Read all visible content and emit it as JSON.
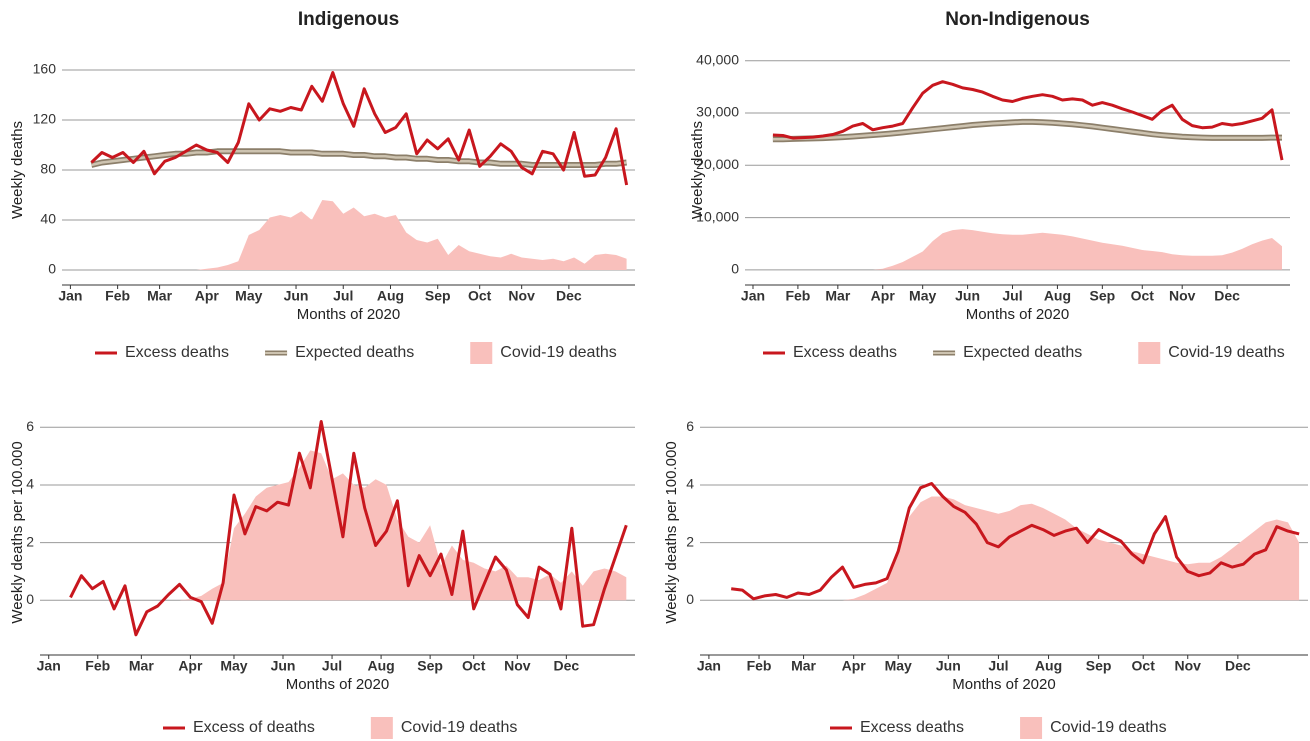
{
  "chart_data": [
    {
      "type": "line",
      "title": "Indigenous",
      "xlabel": "Months of 2020",
      "ylabel": "Weekly deaths",
      "xlim": [
        -0.8,
        53.8
      ],
      "xticks": [
        {
          "value": 0,
          "label": "Jan"
        },
        {
          "value": 4.5,
          "label": "Feb"
        },
        {
          "value": 8.5,
          "label": "Mar"
        },
        {
          "value": 13,
          "label": "Apr"
        },
        {
          "value": 17,
          "label": "May"
        },
        {
          "value": 21.5,
          "label": "Jun"
        },
        {
          "value": 26,
          "label": "Jul"
        },
        {
          "value": 30.5,
          "label": "Aug"
        },
        {
          "value": 35,
          "label": "Sep"
        },
        {
          "value": 39,
          "label": "Oct"
        },
        {
          "value": 43,
          "label": "Nov"
        },
        {
          "value": 47.5,
          "label": "Dec"
        }
      ],
      "ylim": [
        -12,
        172
      ],
      "yticks": [
        0,
        40,
        80,
        120,
        160
      ],
      "grid": true,
      "x": [
        2,
        3,
        4,
        5,
        6,
        7,
        8,
        9,
        10,
        11,
        12,
        13,
        14,
        15,
        16,
        17,
        18,
        19,
        20,
        21,
        22,
        23,
        24,
        25,
        26,
        27,
        28,
        29,
        30,
        31,
        32,
        33,
        34,
        35,
        36,
        37,
        38,
        39,
        40,
        41,
        42,
        43,
        44,
        45,
        46,
        47,
        48,
        49,
        50,
        51,
        52,
        53
      ],
      "series": [
        {
          "name": "Excess deaths",
          "type": "line",
          "color": "#c8171e",
          "values": [
            86,
            94,
            90,
            94,
            86,
            95,
            77,
            87,
            90,
            95,
            100,
            96,
            94,
            86,
            102,
            133,
            120,
            129,
            127,
            130,
            128,
            147,
            135,
            158,
            133,
            115,
            145,
            125,
            110,
            114,
            125,
            93,
            104,
            97,
            105,
            88,
            112,
            83,
            91,
            101,
            95,
            82,
            77,
            95,
            93,
            80,
            110,
            75,
            76,
            90,
            113,
            68
          ]
        },
        {
          "name": "Expected deaths",
          "type": "band",
          "color": "#8c7f6a",
          "values": [
            84,
            86,
            87,
            88,
            89,
            90,
            91,
            92,
            93,
            93,
            94,
            94,
            95,
            95,
            95,
            95,
            95,
            95,
            95,
            94,
            94,
            94,
            93,
            93,
            93,
            92,
            92,
            91,
            91,
            90,
            90,
            89,
            89,
            88,
            88,
            87,
            87,
            86,
            86,
            85,
            85,
            85,
            84,
            84,
            84,
            84,
            84,
            84,
            84,
            85,
            85,
            86
          ]
        },
        {
          "name": "Covid-19 deaths",
          "type": "area",
          "color": "#f9c0bc",
          "values": [
            0,
            0,
            0,
            0,
            0,
            0,
            0,
            0,
            0,
            0,
            0,
            1,
            2,
            4,
            7,
            28,
            32,
            42,
            44,
            42,
            47,
            40,
            56,
            55,
            45,
            50,
            43,
            45,
            42,
            44,
            30,
            24,
            22,
            25,
            12,
            20,
            15,
            13,
            11,
            10,
            13,
            10,
            9,
            8,
            9,
            7,
            10,
            5,
            12,
            13,
            12,
            9
          ]
        }
      ]
    },
    {
      "type": "line",
      "title": "Non-Indigenous",
      "xlabel": "Months of 2020",
      "ylabel": "Weekly deaths",
      "xlim": [
        -0.8,
        53.8
      ],
      "xticks": [
        {
          "value": 0,
          "label": "Jan"
        },
        {
          "value": 4.5,
          "label": "Feb"
        },
        {
          "value": 8.5,
          "label": "Mar"
        },
        {
          "value": 13,
          "label": "Apr"
        },
        {
          "value": 17,
          "label": "May"
        },
        {
          "value": 21.5,
          "label": "Jun"
        },
        {
          "value": 26,
          "label": "Jul"
        },
        {
          "value": 30.5,
          "label": "Aug"
        },
        {
          "value": 35,
          "label": "Sep"
        },
        {
          "value": 39,
          "label": "Oct"
        },
        {
          "value": 43,
          "label": "Nov"
        },
        {
          "value": 47.5,
          "label": "Dec"
        }
      ],
      "ylim": [
        -2900,
        41100
      ],
      "yticks": [
        0,
        {
          "value": 10000,
          "label": "10,000"
        },
        {
          "value": 20000,
          "label": "20,000"
        },
        {
          "value": 30000,
          "label": "30,000"
        },
        {
          "value": 40000,
          "label": "40,000"
        }
      ],
      "grid": true,
      "x": [
        2,
        3,
        4,
        5,
        6,
        7,
        8,
        9,
        10,
        11,
        12,
        13,
        14,
        15,
        16,
        17,
        18,
        19,
        20,
        21,
        22,
        23,
        24,
        25,
        26,
        27,
        28,
        29,
        30,
        31,
        32,
        33,
        34,
        35,
        36,
        37,
        38,
        39,
        40,
        41,
        42,
        43,
        44,
        45,
        46,
        47,
        48,
        49,
        50,
        51,
        52,
        53
      ],
      "series": [
        {
          "name": "Excess deaths",
          "type": "line",
          "color": "#c8171e",
          "values": [
            25800,
            25700,
            25200,
            25300,
            25400,
            25600,
            25900,
            26500,
            27500,
            28000,
            26800,
            27200,
            27500,
            28000,
            31000,
            33800,
            35300,
            36000,
            35500,
            34800,
            34500,
            34000,
            33200,
            32500,
            32200,
            32800,
            33200,
            33500,
            33200,
            32500,
            32700,
            32500,
            31500,
            32000,
            31500,
            30800,
            30200,
            29500,
            28800,
            30500,
            31500,
            28800,
            27600,
            27200,
            27300,
            28000,
            27700,
            28000,
            28500,
            29000,
            30600,
            21000
          ]
        },
        {
          "name": "Expected deaths",
          "type": "band",
          "color": "#8c7f6a",
          "values": [
            25000,
            25000,
            25050,
            25100,
            25150,
            25200,
            25300,
            25400,
            25500,
            25650,
            25800,
            25950,
            26100,
            26300,
            26500,
            26700,
            26900,
            27100,
            27300,
            27500,
            27700,
            27850,
            28000,
            28100,
            28200,
            28300,
            28300,
            28250,
            28150,
            28000,
            27850,
            27650,
            27450,
            27200,
            26950,
            26700,
            26450,
            26200,
            25950,
            25750,
            25600,
            25450,
            25350,
            25300,
            25250,
            25250,
            25250,
            25250,
            25250,
            25250,
            25300,
            25300
          ]
        },
        {
          "name": "Covid-19 deaths",
          "type": "area",
          "color": "#f9c0bc",
          "values": [
            0,
            0,
            0,
            0,
            0,
            0,
            0,
            0,
            0,
            0,
            0,
            200,
            800,
            1500,
            2500,
            3500,
            5500,
            7000,
            7600,
            7800,
            7600,
            7300,
            7000,
            6800,
            6700,
            6700,
            6900,
            7100,
            6900,
            6700,
            6400,
            6000,
            5600,
            5200,
            4900,
            4600,
            4200,
            3800,
            3600,
            3400,
            3000,
            2800,
            2700,
            2700,
            2700,
            2800,
            3300,
            4000,
            4900,
            5600,
            6100,
            4500
          ]
        }
      ]
    },
    {
      "type": "line",
      "xlabel": "Months of 2020",
      "ylabel": "Weekly deaths per 100.000",
      "xlim": [
        -0.8,
        53.8
      ],
      "xticks": [
        {
          "value": 0,
          "label": "Jan"
        },
        {
          "value": 4.5,
          "label": "Feb"
        },
        {
          "value": 8.5,
          "label": "Mar"
        },
        {
          "value": 13,
          "label": "Apr"
        },
        {
          "value": 17,
          "label": "May"
        },
        {
          "value": 21.5,
          "label": "Jun"
        },
        {
          "value": 26,
          "label": "Jul"
        },
        {
          "value": 30.5,
          "label": "Aug"
        },
        {
          "value": 35,
          "label": "Sep"
        },
        {
          "value": 39,
          "label": "Oct"
        },
        {
          "value": 43,
          "label": "Nov"
        },
        {
          "value": 47.5,
          "label": "Dec"
        }
      ],
      "ylim": [
        -1.9,
        6.6
      ],
      "yticks": [
        0,
        2,
        4,
        6
      ],
      "grid": true,
      "x": [
        2,
        3,
        4,
        5,
        6,
        7,
        8,
        9,
        10,
        11,
        12,
        13,
        14,
        15,
        16,
        17,
        18,
        19,
        20,
        21,
        22,
        23,
        24,
        25,
        26,
        27,
        28,
        29,
        30,
        31,
        32,
        33,
        34,
        35,
        36,
        37,
        38,
        39,
        40,
        41,
        42,
        43,
        44,
        45,
        46,
        47,
        48,
        49,
        50,
        51,
        52,
        53
      ],
      "series": [
        {
          "name": "Excess of deaths",
          "type": "line",
          "color": "#c8171e",
          "values": [
            0.1,
            0.85,
            0.4,
            0.65,
            -0.3,
            0.5,
            -1.2,
            -0.4,
            -0.2,
            0.2,
            0.55,
            0.1,
            -0.05,
            -0.8,
            0.6,
            3.65,
            2.3,
            3.25,
            3.1,
            3.4,
            3.3,
            5.1,
            3.9,
            6.2,
            4.2,
            2.2,
            5.1,
            3.2,
            1.9,
            2.4,
            3.45,
            0.5,
            1.55,
            0.85,
            1.6,
            0.2,
            2.4,
            -0.3,
            0.6,
            1.5,
            1.05,
            -0.15,
            -0.6,
            1.15,
            0.9,
            -0.3,
            2.5,
            -0.9,
            -0.85,
            0.4,
            1.5,
            2.6
          ]
        },
        {
          "name": "Covid-19 deaths",
          "type": "area",
          "color": "#f9c0bc",
          "values": [
            0,
            0,
            0,
            0,
            0,
            0,
            0,
            0,
            0,
            0,
            0,
            0.05,
            0.15,
            0.4,
            0.6,
            2.5,
            3.0,
            3.6,
            3.9,
            4.0,
            4.1,
            4.6,
            5.2,
            5.1,
            4.2,
            4.4,
            4.0,
            3.9,
            4.2,
            4.0,
            2.8,
            2.2,
            2.0,
            2.6,
            1.2,
            1.9,
            1.4,
            1.3,
            1.1,
            1.0,
            1.2,
            0.8,
            0.8,
            0.7,
            0.9,
            0.6,
            1.0,
            0.5,
            1.0,
            1.1,
            1.0,
            0.8
          ]
        }
      ]
    },
    {
      "type": "line",
      "xlabel": "Months of 2020",
      "ylabel": "Weekly deaths per 100.000",
      "xlim": [
        -0.8,
        53.8
      ],
      "xticks": [
        {
          "value": 0,
          "label": "Jan"
        },
        {
          "value": 4.5,
          "label": "Feb"
        },
        {
          "value": 8.5,
          "label": "Mar"
        },
        {
          "value": 13,
          "label": "Apr"
        },
        {
          "value": 17,
          "label": "May"
        },
        {
          "value": 21.5,
          "label": "Jun"
        },
        {
          "value": 26,
          "label": "Jul"
        },
        {
          "value": 30.5,
          "label": "Aug"
        },
        {
          "value": 35,
          "label": "Sep"
        },
        {
          "value": 39,
          "label": "Oct"
        },
        {
          "value": 43,
          "label": "Nov"
        },
        {
          "value": 47.5,
          "label": "Dec"
        }
      ],
      "ylim": [
        -1.9,
        6.6
      ],
      "yticks": [
        0,
        2,
        4,
        6
      ],
      "grid": true,
      "x": [
        2,
        3,
        4,
        5,
        6,
        7,
        8,
        9,
        10,
        11,
        12,
        13,
        14,
        15,
        16,
        17,
        18,
        19,
        20,
        21,
        22,
        23,
        24,
        25,
        26,
        27,
        28,
        29,
        30,
        31,
        32,
        33,
        34,
        35,
        36,
        37,
        38,
        39,
        40,
        41,
        42,
        43,
        44,
        45,
        46,
        47,
        48,
        49,
        50,
        51,
        52,
        53
      ],
      "series": [
        {
          "name": "Excess deaths",
          "type": "line",
          "color": "#c8171e",
          "values": [
            0.4,
            0.35,
            0.05,
            0.15,
            0.2,
            0.1,
            0.25,
            0.2,
            0.35,
            0.8,
            1.15,
            0.45,
            0.55,
            0.6,
            0.75,
            1.7,
            3.2,
            3.9,
            4.05,
            3.6,
            3.25,
            3.05,
            2.65,
            2.0,
            1.85,
            2.2,
            2.4,
            2.6,
            2.45,
            2.25,
            2.4,
            2.5,
            2.0,
            2.45,
            2.25,
            2.05,
            1.6,
            1.3,
            2.3,
            2.9,
            1.5,
            1.0,
            0.85,
            0.95,
            1.3,
            1.15,
            1.25,
            1.6,
            1.75,
            2.55,
            2.4,
            2.3
          ]
        },
        {
          "name": "Covid-19 deaths",
          "type": "area",
          "color": "#f9c0bc",
          "values": [
            0,
            0,
            0,
            0,
            0,
            0,
            0,
            0,
            0,
            0,
            0,
            0.05,
            0.2,
            0.4,
            0.6,
            1.6,
            2.9,
            3.4,
            3.6,
            3.6,
            3.5,
            3.3,
            3.2,
            3.1,
            3.0,
            3.1,
            3.3,
            3.35,
            3.2,
            3.0,
            2.8,
            2.5,
            2.3,
            2.1,
            2.0,
            1.9,
            1.7,
            1.6,
            1.5,
            1.4,
            1.3,
            1.25,
            1.3,
            1.3,
            1.5,
            1.8,
            2.1,
            2.4,
            2.7,
            2.8,
            2.7,
            2.0
          ]
        }
      ]
    }
  ]
}
